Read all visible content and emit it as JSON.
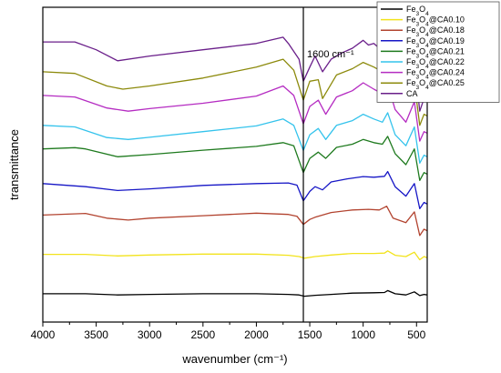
{
  "chart_data": {
    "type": "line",
    "xlabel": "wavenumber (cm⁻¹)",
    "ylabel": "transmittance",
    "xlim": [
      4000,
      400
    ],
    "x_reversed": true,
    "x_ticks": [
      4000,
      3500,
      3000,
      2500,
      2000,
      1500,
      1000,
      500
    ],
    "y_ticks_shown": false,
    "grid": false,
    "legend_position": "top-right",
    "annotation": {
      "text": "1600 cm⁻¹",
      "x": 1560
    },
    "series": [
      {
        "name": "Fe3O4",
        "color": "#000000",
        "points": [
          [
            4000,
            9.0
          ],
          [
            3600,
            9.0
          ],
          [
            3300,
            8.6
          ],
          [
            3000,
            8.8
          ],
          [
            2500,
            9.0
          ],
          [
            2000,
            9.0
          ],
          [
            1700,
            8.8
          ],
          [
            1600,
            8.6
          ],
          [
            1550,
            8.2
          ],
          [
            1450,
            8.5
          ],
          [
            1300,
            8.8
          ],
          [
            1100,
            9.2
          ],
          [
            900,
            9.3
          ],
          [
            800,
            9.4
          ],
          [
            770,
            10.0
          ],
          [
            700,
            9.0
          ],
          [
            600,
            8.6
          ],
          [
            520,
            9.6
          ],
          [
            470,
            8.4
          ],
          [
            430,
            8.8
          ],
          [
            400,
            8.6
          ]
        ]
      },
      {
        "name": "Fe3O4@CA0.10",
        "color": "#f2e31c",
        "points": [
          [
            4000,
            21.5
          ],
          [
            3600,
            21.5
          ],
          [
            3300,
            21.0
          ],
          [
            3000,
            21.3
          ],
          [
            2500,
            21.6
          ],
          [
            2000,
            21.6
          ],
          [
            1700,
            21.2
          ],
          [
            1600,
            20.8
          ],
          [
            1550,
            20.3
          ],
          [
            1450,
            20.8
          ],
          [
            1300,
            21.3
          ],
          [
            1100,
            21.8
          ],
          [
            900,
            21.8
          ],
          [
            800,
            21.9
          ],
          [
            770,
            22.6
          ],
          [
            700,
            21.2
          ],
          [
            600,
            20.8
          ],
          [
            520,
            22.2
          ],
          [
            470,
            19.8
          ],
          [
            430,
            20.8
          ],
          [
            400,
            20.4
          ]
        ]
      },
      {
        "name": "Fe3O4@CA0.18",
        "color": "#b2432f",
        "points": [
          [
            4000,
            34.0
          ],
          [
            3600,
            34.5
          ],
          [
            3400,
            33.0
          ],
          [
            3200,
            32.4
          ],
          [
            3000,
            33.0
          ],
          [
            2500,
            33.8
          ],
          [
            2000,
            34.6
          ],
          [
            1700,
            34.2
          ],
          [
            1620,
            33.6
          ],
          [
            1560,
            31.0
          ],
          [
            1500,
            32.6
          ],
          [
            1450,
            33.3
          ],
          [
            1300,
            34.8
          ],
          [
            1100,
            35.6
          ],
          [
            950,
            35.8
          ],
          [
            850,
            35.6
          ],
          [
            780,
            36.8
          ],
          [
            720,
            33.0
          ],
          [
            600,
            31.6
          ],
          [
            520,
            35.0
          ],
          [
            470,
            27.5
          ],
          [
            430,
            29.5
          ],
          [
            400,
            29.0
          ]
        ]
      },
      {
        "name": "Fe3O4@CA0.19",
        "color": "#1616c6",
        "points": [
          [
            4000,
            44.0
          ],
          [
            3600,
            43.0
          ],
          [
            3300,
            41.8
          ],
          [
            3000,
            42.3
          ],
          [
            2500,
            43.4
          ],
          [
            2000,
            44.0
          ],
          [
            1700,
            44.2
          ],
          [
            1620,
            43.5
          ],
          [
            1560,
            38.5
          ],
          [
            1500,
            41.5
          ],
          [
            1450,
            43.0
          ],
          [
            1380,
            42.0
          ],
          [
            1300,
            44.5
          ],
          [
            1150,
            45.5
          ],
          [
            1000,
            46.2
          ],
          [
            900,
            46.0
          ],
          [
            800,
            46.3
          ],
          [
            770,
            47.8
          ],
          [
            700,
            43.0
          ],
          [
            600,
            40.0
          ],
          [
            520,
            44.0
          ],
          [
            470,
            36.0
          ],
          [
            430,
            38.0
          ],
          [
            400,
            37.5
          ]
        ]
      },
      {
        "name": "Fe3O4@CA0.21",
        "color": "#1e7a1e",
        "points": [
          [
            4000,
            55.0
          ],
          [
            3700,
            55.4
          ],
          [
            3600,
            55.0
          ],
          [
            3300,
            52.5
          ],
          [
            3000,
            53.2
          ],
          [
            2500,
            54.6
          ],
          [
            2000,
            55.8
          ],
          [
            1750,
            57.0
          ],
          [
            1650,
            56.0
          ],
          [
            1560,
            47.5
          ],
          [
            1500,
            52.0
          ],
          [
            1420,
            54.0
          ],
          [
            1350,
            52.0
          ],
          [
            1250,
            55.5
          ],
          [
            1100,
            56.5
          ],
          [
            1000,
            58.0
          ],
          [
            900,
            57.0
          ],
          [
            820,
            56.5
          ],
          [
            770,
            59.0
          ],
          [
            700,
            53.5
          ],
          [
            600,
            50.0
          ],
          [
            520,
            55.0
          ],
          [
            470,
            45.0
          ],
          [
            430,
            47.5
          ],
          [
            400,
            47.0
          ]
        ]
      },
      {
        "name": "Fe3O4@CA0.22",
        "color": "#34c3ec",
        "points": [
          [
            4000,
            62.5
          ],
          [
            3700,
            62.0
          ],
          [
            3400,
            58.6
          ],
          [
            3200,
            58.0
          ],
          [
            3000,
            58.7
          ],
          [
            2500,
            60.5
          ],
          [
            2000,
            62.3
          ],
          [
            1750,
            64.5
          ],
          [
            1650,
            62.5
          ],
          [
            1560,
            54.5
          ],
          [
            1500,
            59.5
          ],
          [
            1420,
            61.5
          ],
          [
            1350,
            58.0
          ],
          [
            1250,
            62.5
          ],
          [
            1100,
            64.0
          ],
          [
            1000,
            66.0
          ],
          [
            900,
            64.5
          ],
          [
            820,
            63.5
          ],
          [
            770,
            66.5
          ],
          [
            700,
            59.5
          ],
          [
            600,
            56.0
          ],
          [
            520,
            62.0
          ],
          [
            470,
            50.5
          ],
          [
            430,
            53.0
          ],
          [
            400,
            52.5
          ]
        ]
      },
      {
        "name": "Fe3O4@CA0.24",
        "color": "#b52cc2",
        "points": [
          [
            4000,
            72.0
          ],
          [
            3700,
            71.5
          ],
          [
            3400,
            68.0
          ],
          [
            3200,
            67.0
          ],
          [
            3000,
            67.8
          ],
          [
            2500,
            69.5
          ],
          [
            2000,
            71.8
          ],
          [
            1750,
            75.0
          ],
          [
            1650,
            72.0
          ],
          [
            1560,
            63.0
          ],
          [
            1500,
            68.5
          ],
          [
            1420,
            70.5
          ],
          [
            1350,
            66.0
          ],
          [
            1250,
            71.5
          ],
          [
            1100,
            73.5
          ],
          [
            1000,
            76.0
          ],
          [
            900,
            74.0
          ],
          [
            820,
            72.5
          ],
          [
            770,
            75.5
          ],
          [
            700,
            67.5
          ],
          [
            600,
            63.5
          ],
          [
            520,
            70.0
          ],
          [
            470,
            57.5
          ],
          [
            430,
            60.5
          ],
          [
            400,
            60.0
          ]
        ]
      },
      {
        "name": "Fe3O4@CA0.25",
        "color": "#8c8a0c",
        "points": [
          [
            4000,
            79.5
          ],
          [
            3700,
            79.0
          ],
          [
            3400,
            75.0
          ],
          [
            3250,
            74.0
          ],
          [
            3000,
            75.0
          ],
          [
            2500,
            77.5
          ],
          [
            2000,
            81.0
          ],
          [
            1750,
            83.5
          ],
          [
            1650,
            80.0
          ],
          [
            1560,
            70.5
          ],
          [
            1500,
            76.5
          ],
          [
            1420,
            77.0
          ],
          [
            1380,
            71.0
          ],
          [
            1250,
            78.5
          ],
          [
            1100,
            80.5
          ],
          [
            1000,
            82.5
          ],
          [
            900,
            81.0
          ],
          [
            820,
            79.5
          ],
          [
            770,
            82.0
          ],
          [
            700,
            74.0
          ],
          [
            600,
            70.0
          ],
          [
            520,
            76.0
          ],
          [
            470,
            62.5
          ],
          [
            430,
            66.0
          ],
          [
            400,
            65.5
          ]
        ]
      },
      {
        "name": "CA",
        "color": "#6a1f8a",
        "points": [
          [
            4000,
            89.0
          ],
          [
            3700,
            89.0
          ],
          [
            3500,
            86.5
          ],
          [
            3300,
            83.0
          ],
          [
            3000,
            84.5
          ],
          [
            2500,
            86.5
          ],
          [
            2000,
            88.5
          ],
          [
            1750,
            90.5
          ],
          [
            1700,
            88.5
          ],
          [
            1600,
            83.5
          ],
          [
            1560,
            76.5
          ],
          [
            1500,
            81.0
          ],
          [
            1450,
            84.5
          ],
          [
            1380,
            79.5
          ],
          [
            1300,
            83.5
          ],
          [
            1200,
            85.5
          ],
          [
            1100,
            87.0
          ],
          [
            1000,
            89.5
          ],
          [
            950,
            88.0
          ],
          [
            900,
            88.5
          ],
          [
            850,
            87.0
          ],
          [
            800,
            86.5
          ],
          [
            770,
            89.0
          ],
          [
            700,
            82.0
          ],
          [
            600,
            77.0
          ],
          [
            520,
            83.0
          ],
          [
            470,
            67.0
          ],
          [
            430,
            71.0
          ],
          [
            400,
            70.5
          ]
        ]
      }
    ]
  },
  "legend": {
    "items": [
      {
        "base": "Fe",
        "sub1": "3",
        "mid": "O",
        "sub2": "4",
        "suffix": "",
        "color": "#000000"
      },
      {
        "base": "Fe",
        "sub1": "3",
        "mid": "O",
        "sub2": "4",
        "suffix": "@CA0.10",
        "color": "#f2e31c"
      },
      {
        "base": "Fe",
        "sub1": "3",
        "mid": "O",
        "sub2": "4",
        "suffix": "@CA0.18",
        "color": "#b2432f"
      },
      {
        "base": "Fe",
        "sub1": "3",
        "mid": "O",
        "sub2": "4",
        "suffix": "@CA0.19",
        "color": "#1616c6"
      },
      {
        "base": "Fe",
        "sub1": "3",
        "mid": "O",
        "sub2": "4",
        "suffix": "@CA0.21",
        "color": "#1e7a1e"
      },
      {
        "base": "Fe",
        "sub1": "3",
        "mid": "O",
        "sub2": "4",
        "suffix": "@CA0.22",
        "color": "#34c3ec"
      },
      {
        "base": "Fe",
        "sub1": "3",
        "mid": "O",
        "sub2": "4",
        "suffix": "@CA0.24",
        "color": "#b52cc2"
      },
      {
        "base": "Fe",
        "sub1": "3",
        "mid": "O",
        "sub2": "4",
        "suffix": "@CA0.25",
        "color": "#8c8a0c"
      },
      {
        "base": "CA",
        "sub1": "",
        "mid": "",
        "sub2": "",
        "suffix": "",
        "color": "#6a1f8a"
      }
    ]
  }
}
